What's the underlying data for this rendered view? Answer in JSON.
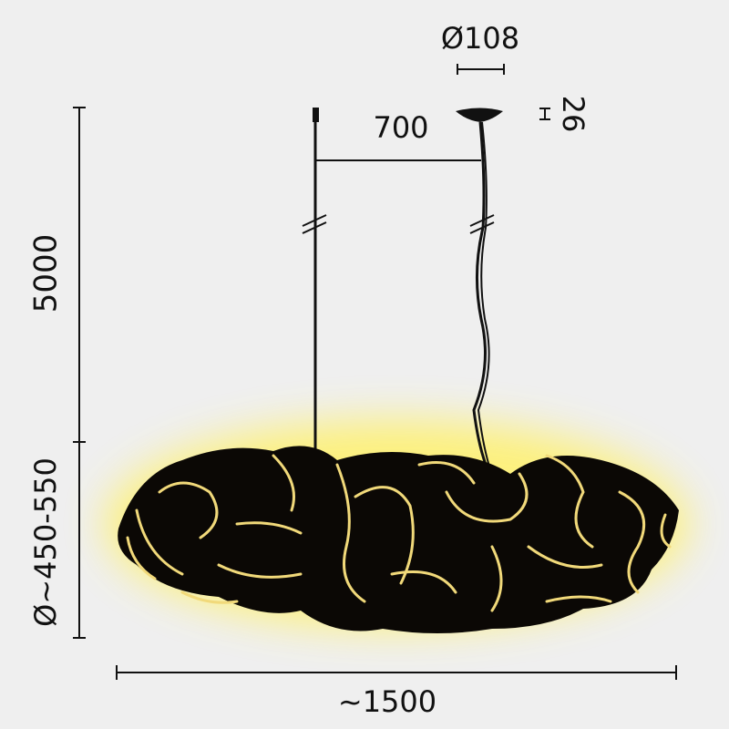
{
  "dimensions": {
    "canopy_diameter": "Ø108",
    "canopy_height": "26",
    "cord_spacing": "700",
    "cord_length": "5000",
    "shade_diameter": "Ø~450-550",
    "total_width": "~1500"
  }
}
